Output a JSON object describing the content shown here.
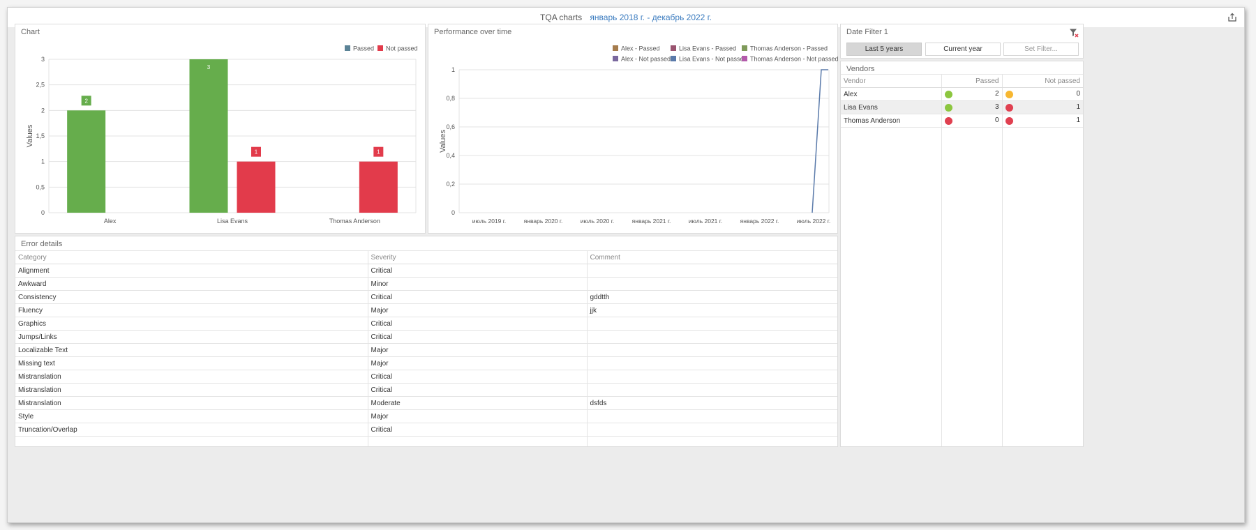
{
  "header": {
    "title": "TQA charts",
    "date_range": "январь 2018 г. - декабрь 2022 г."
  },
  "chart_panel": {
    "title": "Chart"
  },
  "performance_panel": {
    "title": "Performance over time"
  },
  "error_panel": {
    "title": "Error details"
  },
  "date_filter": {
    "title": "Date Filter 1",
    "buttons": [
      "Last 5 years",
      "Current year",
      "Set Filter..."
    ]
  },
  "vendors": {
    "title": "Vendors",
    "columns": [
      "Vendor",
      "Passed",
      "Not passed"
    ],
    "rows": [
      {
        "vendor": "Alex",
        "passed": "2",
        "not_passed": "0",
        "passed_color": "#8cc63f",
        "not_passed_color": "#f7b731"
      },
      {
        "vendor": "Lisa Evans",
        "passed": "3",
        "not_passed": "1",
        "passed_color": "#8cc63f",
        "not_passed_color": "#e04050"
      },
      {
        "vendor": "Thomas Anderson",
        "passed": "0",
        "not_passed": "1",
        "passed_color": "#e04050",
        "not_passed_color": "#e04050"
      }
    ]
  },
  "error_table": {
    "columns": [
      "Category",
      "Severity",
      "Comment"
    ],
    "rows": [
      [
        "Alignment",
        "Critical",
        ""
      ],
      [
        "Awkward",
        "Minor",
        ""
      ],
      [
        "Consistency",
        "Critical",
        "gddtth"
      ],
      [
        "Fluency",
        "Major",
        "jjk"
      ],
      [
        "Graphics",
        "Critical",
        ""
      ],
      [
        "Jumps/Links",
        "Critical",
        ""
      ],
      [
        "Localizable Text",
        "Major",
        ""
      ],
      [
        "Missing text",
        "Major",
        ""
      ],
      [
        "Mistranslation",
        "Critical",
        ""
      ],
      [
        "Mistranslation",
        "Critical",
        ""
      ],
      [
        "Mistranslation",
        "Moderate",
        "dsfds"
      ],
      [
        "Style",
        "Major",
        ""
      ],
      [
        "Truncation/Overlap",
        "Critical",
        ""
      ]
    ]
  },
  "chart_data": [
    {
      "type": "bar",
      "categories": [
        "Alex",
        "Lisa Evans",
        "Thomas Anderson"
      ],
      "series": [
        {
          "name": "Passed",
          "values": [
            2,
            3,
            0
          ],
          "color": "#66ad4c",
          "legend_color": "#5b8396"
        },
        {
          "name": "Not passed",
          "values": [
            0,
            1,
            1
          ],
          "color": "#e23b4b",
          "legend_color": "#e23b4b"
        }
      ],
      "data_labels": {
        "Passed": [
          "2",
          "3",
          ""
        ],
        "Not passed": [
          "",
          "1",
          "1"
        ]
      },
      "ylabel": "Values",
      "ylim": [
        0,
        3
      ],
      "yticks": [
        "0",
        "0,5",
        "1",
        "1,5",
        "2",
        "2,5",
        "3"
      ],
      "legend": "top-right",
      "grid": true
    },
    {
      "type": "line",
      "legend_rows": [
        [
          {
            "name": "Alex - Passed",
            "color": "#a57c4d"
          },
          {
            "name": "Lisa Evans - Passed",
            "color": "#9a5470"
          },
          {
            "name": "Thomas Anderson - Passed",
            "color": "#7f9a5a"
          }
        ],
        [
          {
            "name": "Alex - Not passed",
            "color": "#7a689e"
          },
          {
            "name": "Lisa Evans - Not passed",
            "color": "#5a7aaa"
          },
          {
            "name": "Thomas Anderson - Not passed",
            "color": "#b35aaa"
          }
        ]
      ],
      "x_ticks": [
        "июль 2019 г.",
        "январь 2020 г.",
        "июль 2020 г.",
        "январь 2021 г.",
        "июль 2021 г.",
        "январь 2022 г.",
        "июль 2022 г."
      ],
      "ylabel": "Values",
      "ylim": [
        0,
        1
      ],
      "yticks": [
        "0",
        "0,2",
        "0,4",
        "0,6",
        "0,8",
        "1"
      ],
      "visible_series": {
        "name": "Lisa Evans - Not passed",
        "color": "#5a7aaa",
        "x": [
          "июль 2022 г.",
          "июль 2022 г.",
          "декабрь 2022 г."
        ],
        "values": [
          0,
          1,
          1
        ]
      },
      "legend": "top-right",
      "grid": true
    }
  ]
}
